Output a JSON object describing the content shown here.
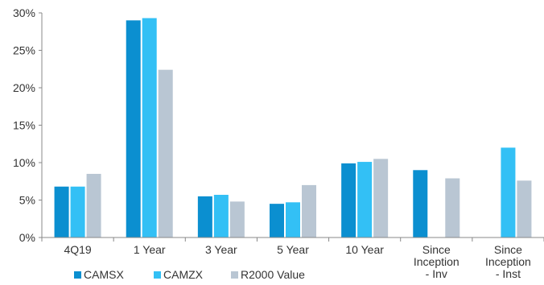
{
  "chart_data": {
    "type": "bar",
    "categories": [
      [
        "4Q19"
      ],
      [
        "1 Year"
      ],
      [
        "3 Year"
      ],
      [
        "5 Year"
      ],
      [
        "10 Year"
      ],
      [
        "Since",
        "Inception",
        "- Inv"
      ],
      [
        "Since",
        "Inception",
        "- Inst"
      ]
    ],
    "series": [
      {
        "name": "CAMSX",
        "color": "#0b8fd0",
        "values": [
          6.8,
          29.0,
          5.5,
          4.5,
          9.9,
          9.0,
          null
        ]
      },
      {
        "name": "CAMZX",
        "color": "#33c0f5",
        "values": [
          6.8,
          29.3,
          5.7,
          4.7,
          10.1,
          null,
          12.0
        ]
      },
      {
        "name": "R2000 Value",
        "color": "#b9c6d3",
        "values": [
          8.5,
          22.4,
          4.8,
          7.0,
          10.5,
          7.9,
          7.6
        ]
      }
    ],
    "ylim": [
      0,
      30
    ],
    "yticks": [
      0,
      5,
      10,
      15,
      20,
      25,
      30
    ],
    "ytick_labels": [
      "0%",
      "5%",
      "10%",
      "15%",
      "20%",
      "25%",
      "30%"
    ],
    "legend_position": "bottom-left",
    "grid": false
  }
}
